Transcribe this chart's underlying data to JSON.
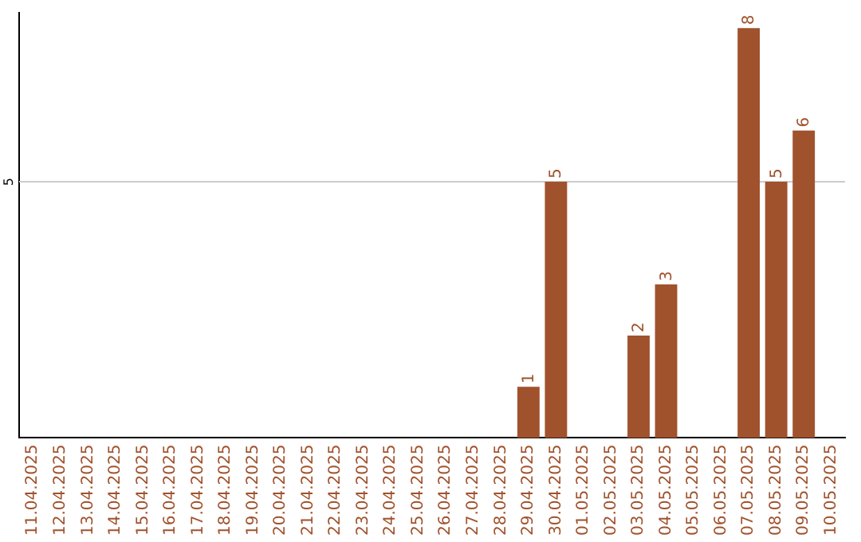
{
  "chart_data": {
    "type": "bar",
    "categories": [
      "11.04.2025",
      "12.04.2025",
      "13.04.2025",
      "14.04.2025",
      "15.04.2025",
      "16.04.2025",
      "17.04.2025",
      "18.04.2025",
      "19.04.2025",
      "20.04.2025",
      "21.04.2025",
      "22.04.2025",
      "23.04.2025",
      "24.04.2025",
      "25.04.2025",
      "26.04.2025",
      "27.04.2025",
      "28.04.2025",
      "29.04.2025",
      "30.04.2025",
      "01.05.2025",
      "02.05.2025",
      "03.05.2025",
      "04.05.2025",
      "05.05.2025",
      "06.05.2025",
      "07.05.2025",
      "08.05.2025",
      "09.05.2025",
      "10.05.2025"
    ],
    "values": [
      null,
      null,
      null,
      null,
      null,
      null,
      null,
      null,
      null,
      null,
      null,
      null,
      null,
      null,
      null,
      null,
      null,
      null,
      1,
      5,
      null,
      null,
      2,
      3,
      null,
      null,
      8,
      5,
      6,
      null
    ],
    "data_labels": true,
    "ylim": [
      0,
      8.3
    ],
    "color": "#a0522d",
    "ref_lines": [
      {
        "axis": "y",
        "value": 5,
        "label": "5",
        "color": "#cccccc"
      }
    ],
    "legend": false
  }
}
